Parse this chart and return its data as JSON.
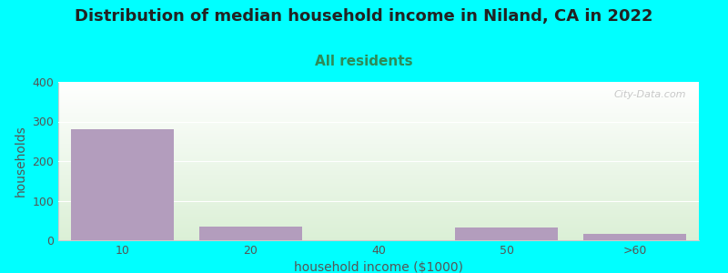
{
  "title": "Distribution of median household income in Niland, CA in 2022",
  "subtitle": "All residents",
  "xlabel": "household income ($1000)",
  "ylabel": "households",
  "categories": [
    "10",
    "20",
    "40",
    "50",
    ">60"
  ],
  "values": [
    280,
    35,
    0,
    33,
    15
  ],
  "bar_color": "#b39dbd",
  "bg_top_color": "#f0f8f0",
  "bg_bottom_color": "#e8f5e0",
  "bg_top_right": "#ffffff",
  "outer_bg": "#00ffff",
  "ylim": [
    0,
    400
  ],
  "yticks": [
    0,
    100,
    200,
    300,
    400
  ],
  "title_fontsize": 13,
  "subtitle_fontsize": 11,
  "axis_label_fontsize": 10,
  "tick_fontsize": 9,
  "watermark": "City-Data.com",
  "title_color": "#222222",
  "subtitle_color": "#2e8b57",
  "axis_label_color": "#555555",
  "tick_color": "#555555",
  "grid_color": "#e0e0e0"
}
